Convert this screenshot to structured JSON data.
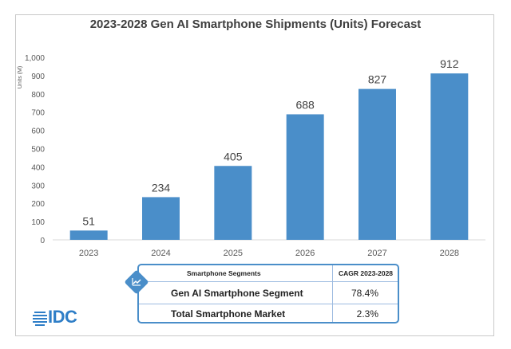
{
  "chart_data": {
    "type": "bar",
    "title": "2023-2028 Gen AI Smartphone Shipments (Units) Forecast",
    "ylabel": "Units (M)",
    "xlabel": "",
    "categories": [
      "2023",
      "2024",
      "2025",
      "2026",
      "2027",
      "2028"
    ],
    "values": [
      51,
      234,
      405,
      688,
      827,
      912
    ],
    "data_labels": [
      "51",
      "234",
      "405",
      "688",
      "827",
      "912"
    ],
    "ylim": [
      0,
      1000
    ],
    "yticks": [
      0,
      100,
      200,
      300,
      400,
      500,
      600,
      700,
      800,
      900,
      1000
    ],
    "ytick_labels": [
      "0",
      "100",
      "200",
      "300",
      "400",
      "500",
      "600",
      "700",
      "800",
      "900",
      "1,000"
    ],
    "bar_color": "#4a8ec9",
    "grid": false
  },
  "segments_table": {
    "header_segment": "Smartphone Segments",
    "header_cagr": "CAGR 2023-2028",
    "rows": [
      {
        "name": "Gen AI Smartphone Segment",
        "cagr": "78.4%"
      },
      {
        "name": "Total Smartphone Market",
        "cagr": "2.3%"
      }
    ],
    "icon": "trend-line-icon"
  },
  "logo": {
    "text": "IDC",
    "color": "#2f7ec7"
  }
}
